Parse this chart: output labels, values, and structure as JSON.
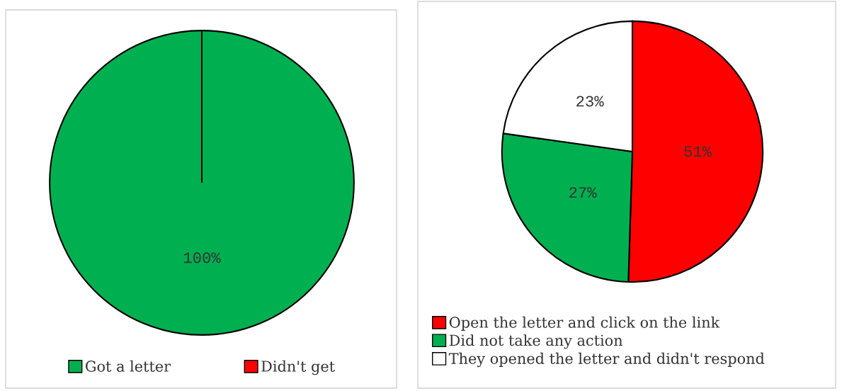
{
  "chart_data": [
    {
      "type": "pie",
      "categories": [
        "Got a letter",
        "Didn't get"
      ],
      "values": [
        100,
        0
      ],
      "colors": [
        "#00b050",
        "#ff0000"
      ],
      "value_labels": [
        "100%",
        null
      ],
      "legend": "bottom"
    },
    {
      "type": "pie",
      "categories": [
        "Open the letter and click on the link",
        "Did not take any action",
        "They opened the letter and didn't respond"
      ],
      "values": [
        51,
        27,
        23
      ],
      "colors": [
        "#ff0000",
        "#00b050",
        "#ffffff"
      ],
      "value_labels": [
        "51%",
        "27%",
        "23%"
      ],
      "legend": "bottom left"
    }
  ]
}
